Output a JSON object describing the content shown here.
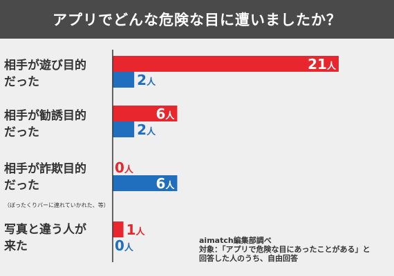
{
  "header": {
    "title": "アプリでどんな危険な目に遭いましたか？"
  },
  "colors": {
    "red": "#e8262e",
    "blue": "#1f6fbe",
    "axis": "#333333",
    "bg": "#efefef",
    "header_bg": "#4a4a4a"
  },
  "unit": "人",
  "source": {
    "line1": "aimatch編集部調べ",
    "line2": "対象：「アプリで危険な目にあったことがある」と",
    "line3": "回答した人のうち、自由回答"
  },
  "chart_data": {
    "type": "bar",
    "orientation": "horizontal",
    "categories": [
      {
        "lines": [
          "相手が遊び目的",
          "だった"
        ],
        "note": ""
      },
      {
        "lines": [
          "相手が勧誘目的",
          "だった"
        ],
        "note": ""
      },
      {
        "lines": [
          "相手が詐欺目的",
          "だった"
        ],
        "note": "（ぼったくりバーに連れていかれた、等）"
      },
      {
        "lines": [
          "写真と違う人が",
          "来た"
        ],
        "note": ""
      }
    ],
    "series": [
      {
        "color": "#e8262e",
        "values": [
          21,
          6,
          0,
          1
        ]
      },
      {
        "color": "#1f6fbe",
        "values": [
          2,
          2,
          6,
          0
        ]
      }
    ],
    "xlim": [
      0,
      21
    ],
    "grid": false,
    "legend": "none"
  }
}
